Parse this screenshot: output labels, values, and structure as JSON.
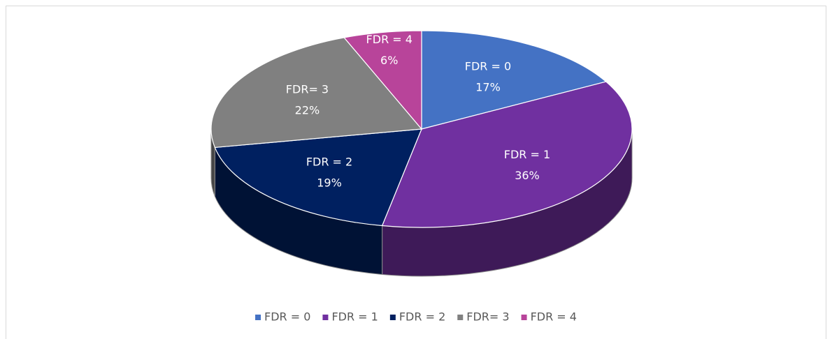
{
  "chart_data": {
    "type": "pie",
    "categories": [
      "FDR = 0",
      "FDR = 1",
      "FDR = 2",
      "FDR= 3",
      "FDR = 4"
    ],
    "values": [
      17,
      36,
      19,
      22,
      6
    ],
    "value_labels": [
      "17%",
      "36%",
      "19%",
      "22%",
      "6%"
    ],
    "colors": [
      "#4472c4",
      "#7030a0",
      "#002060",
      "#808080",
      "#b8449a"
    ],
    "legend": "bottom"
  }
}
